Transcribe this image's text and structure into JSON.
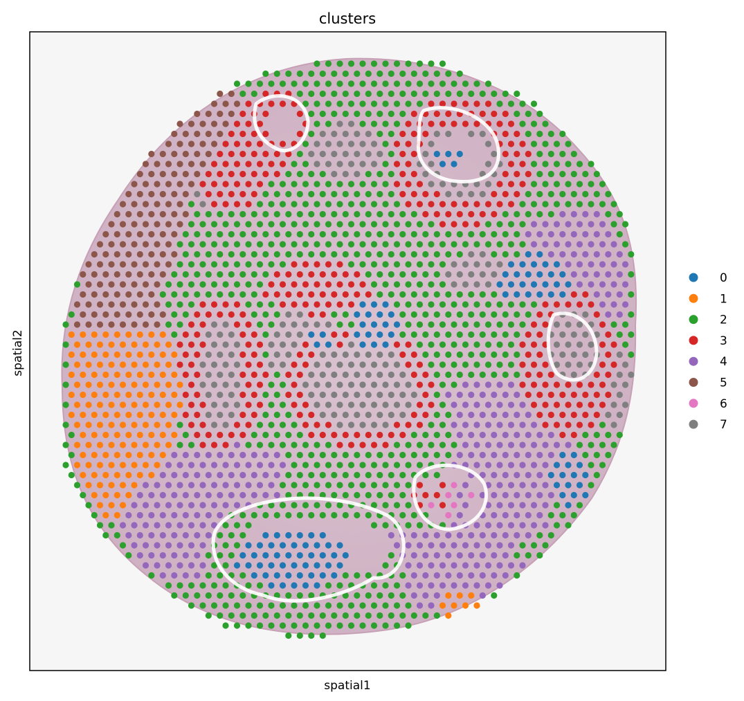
{
  "chart_data": {
    "type": "scatter",
    "title": "clusters",
    "xlabel": "spatial1",
    "ylabel": "spatial2",
    "ticks": "none",
    "grid": false,
    "legend": {
      "placement": "right",
      "entries": [
        {
          "label": "0",
          "color": "#1f77b4"
        },
        {
          "label": "1",
          "color": "#ff7f0e"
        },
        {
          "label": "2",
          "color": "#2ca02c"
        },
        {
          "label": "3",
          "color": "#d62728"
        },
        {
          "label": "4",
          "color": "#9467bd"
        },
        {
          "label": "5",
          "color": "#8c564b"
        },
        {
          "label": "6",
          "color": "#e377c2"
        },
        {
          "label": "7",
          "color": "#7f7f7f"
        }
      ]
    },
    "background": "H&E tissue section image",
    "tissue_color": "#dcc4d2",
    "hole_color": "#ffffff"
  }
}
